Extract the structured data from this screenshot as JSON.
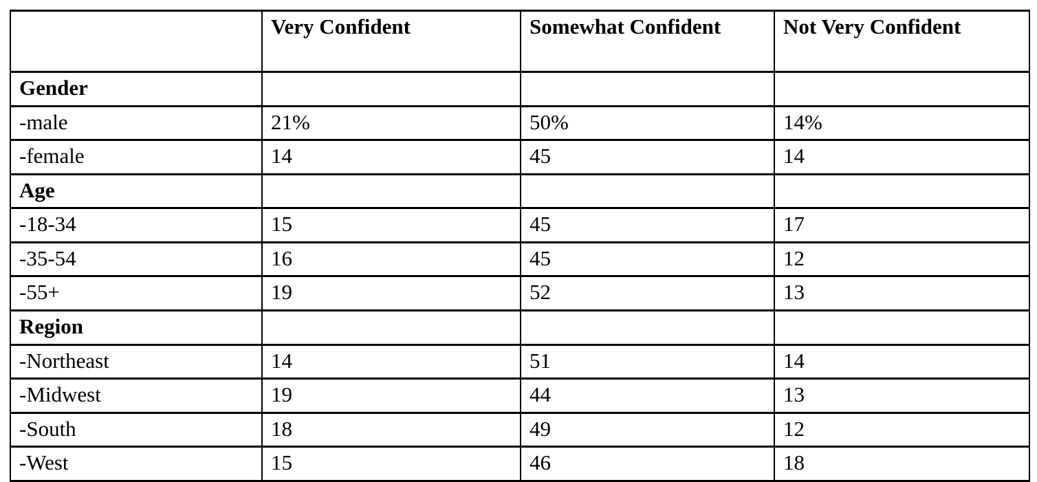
{
  "table": {
    "columns": [
      "",
      "Very Confident",
      "Somewhat Confident",
      "Not Very Confident"
    ],
    "rows": [
      {
        "label": "Gender",
        "type": "section",
        "values": [
          "",
          "",
          ""
        ]
      },
      {
        "label": "-male",
        "type": "data",
        "values": [
          "21%",
          "50%",
          "14%"
        ]
      },
      {
        "label": "-female",
        "type": "data",
        "values": [
          "14",
          "45",
          "14"
        ]
      },
      {
        "label": "Age",
        "type": "section",
        "values": [
          "",
          "",
          ""
        ]
      },
      {
        "label": "-18-34",
        "type": "data",
        "values": [
          "15",
          "45",
          "17"
        ]
      },
      {
        "label": "-35-54",
        "type": "data",
        "values": [
          "16",
          "45",
          "12"
        ]
      },
      {
        "label": "-55+",
        "type": "data",
        "values": [
          "19",
          "52",
          "13"
        ]
      },
      {
        "label": "Region",
        "type": "section",
        "values": [
          "",
          "",
          ""
        ]
      },
      {
        "label": "-Northeast",
        "type": "data",
        "values": [
          "14",
          "51",
          "14"
        ]
      },
      {
        "label": "-Midwest",
        "type": "data",
        "values": [
          "19",
          "44",
          "13"
        ]
      },
      {
        "label": "-South",
        "type": "data",
        "values": [
          "18",
          "49",
          "12"
        ]
      },
      {
        "label": "-West",
        "type": "data",
        "values": [
          "15",
          "46",
          "18"
        ]
      }
    ]
  }
}
